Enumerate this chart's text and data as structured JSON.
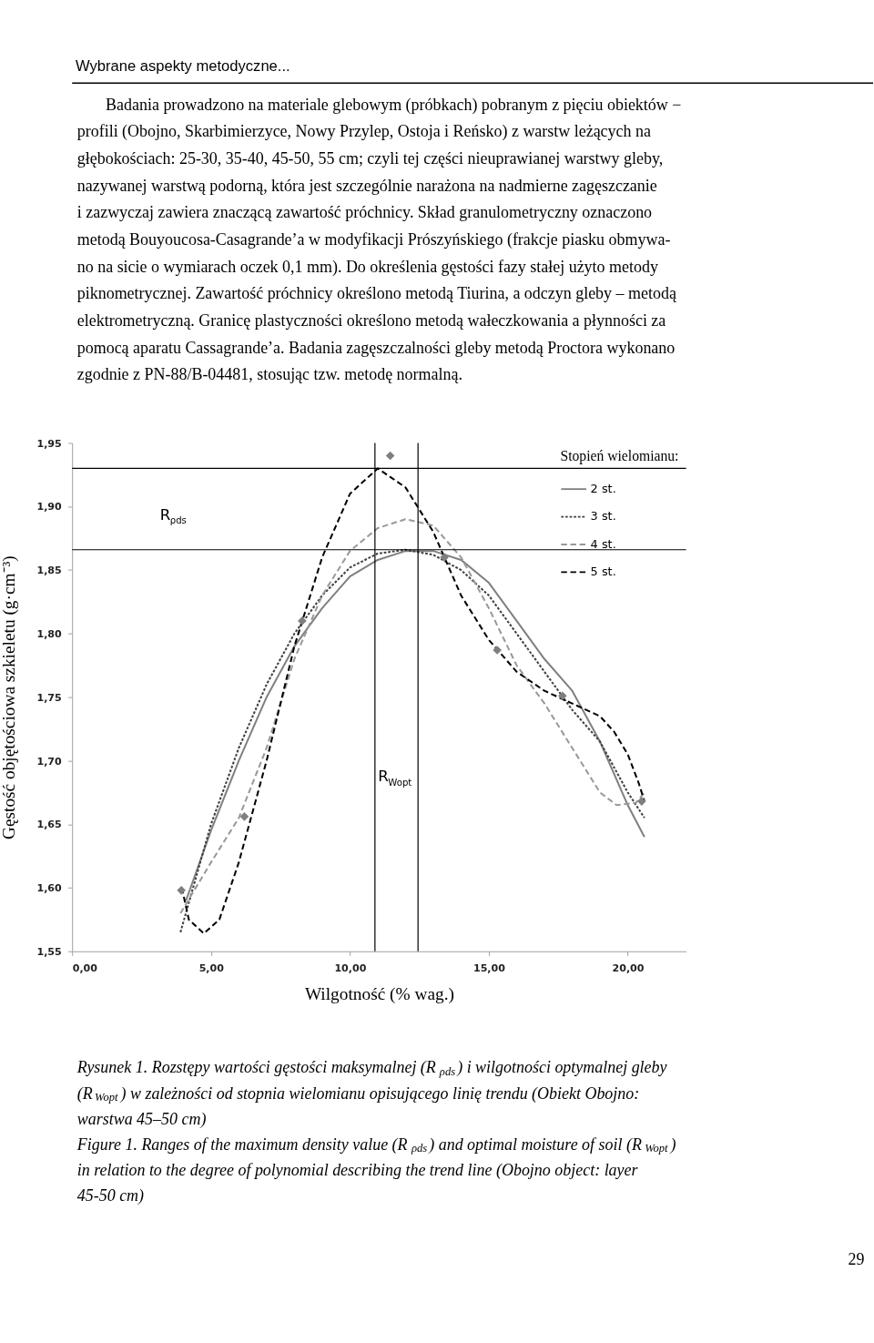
{
  "chart_data": {
    "type": "line",
    "title": "Wybrane aspekty metodyczne...",
    "xlabel": "Wilgotność (% wag.)",
    "ylabel": "Gęstość objętościowa szkieletu (g·cm⁻³)",
    "legend_title": "Stopień wielomianu:",
    "xlim": [
      0,
      22.1
    ],
    "xticks": [
      {
        "value": 0,
        "label": "0,00"
      },
      {
        "value": 5,
        "label": "5,00"
      },
      {
        "value": 10,
        "label": "10,00"
      },
      {
        "value": 15,
        "label": "15,00"
      },
      {
        "value": 20,
        "label": "20,00"
      }
    ],
    "ylim": [
      1.55,
      1.95
    ],
    "yticks": [
      {
        "value": 1.55,
        "label": "1,55"
      },
      {
        "value": 1.6,
        "label": "1,60"
      },
      {
        "value": 1.65,
        "label": "1,65"
      },
      {
        "value": 1.7,
        "label": "1,70"
      },
      {
        "value": 1.75,
        "label": "1,75"
      },
      {
        "value": 1.8,
        "label": "1,80"
      },
      {
        "value": 1.85,
        "label": "1,85"
      },
      {
        "value": 1.9,
        "label": "1,90"
      },
      {
        "value": 1.95,
        "label": "1,95"
      }
    ],
    "grid": false,
    "legend": "top right",
    "series": [
      {
        "name": "2 st.",
        "color": "#808080",
        "line_style": "solid",
        "x": [
          4.1,
          5,
          6,
          7,
          8,
          9,
          10,
          11,
          12,
          13,
          14,
          15,
          16,
          17,
          18,
          19,
          20,
          20.6
        ],
        "values": [
          1.59,
          1.645,
          1.7,
          1.75,
          1.79,
          1.82,
          1.845,
          1.858,
          1.865,
          1.865,
          1.858,
          1.84,
          1.81,
          1.78,
          1.755,
          1.715,
          1.665,
          1.64
        ]
      },
      {
        "name": "3 st.",
        "color": "#404040",
        "line_style": "dotted",
        "x": [
          3.9,
          5,
          6,
          7,
          8,
          9,
          10,
          11,
          12,
          13,
          14,
          15,
          16,
          17,
          18,
          19,
          20,
          20.6
        ],
        "values": [
          1.565,
          1.65,
          1.71,
          1.76,
          1.8,
          1.83,
          1.852,
          1.863,
          1.866,
          1.862,
          1.85,
          1.83,
          1.8,
          1.77,
          1.74,
          1.715,
          1.675,
          1.655
        ]
      },
      {
        "name": "4 st.",
        "color": "#999999",
        "line_style": "dashed",
        "x": [
          3.9,
          5,
          6,
          7,
          8,
          9,
          10,
          11,
          12,
          13,
          14,
          15,
          16,
          17,
          18,
          19,
          19.6,
          20.3,
          20.6
        ],
        "values": [
          1.58,
          1.62,
          1.655,
          1.71,
          1.78,
          1.83,
          1.865,
          1.883,
          1.89,
          1.885,
          1.86,
          1.82,
          1.775,
          1.745,
          1.71,
          1.675,
          1.665,
          1.667,
          1.675
        ]
      },
      {
        "name": "5 st.",
        "color": "#000000",
        "line_style": "dashed",
        "x": [
          3.95,
          4.2,
          4.74,
          5.3,
          6,
          7,
          8,
          9,
          10,
          11,
          12,
          13,
          14,
          15,
          16,
          17,
          18,
          19,
          19.5,
          20,
          20.4,
          20.6
        ],
        "values": [
          1.6,
          1.575,
          1.564,
          1.575,
          1.62,
          1.7,
          1.79,
          1.86,
          1.91,
          1.93,
          1.915,
          1.88,
          1.83,
          1.795,
          1.77,
          1.755,
          1.745,
          1.735,
          1.723,
          1.705,
          1.682,
          1.668
        ]
      },
      {
        "type": "scatter",
        "color": "#7f7f7f",
        "marker": "diamond",
        "x": [
          3.93,
          6.2,
          8.28,
          11.45,
          13.4,
          15.3,
          17.65,
          20.5
        ],
        "values": [
          1.598,
          1.656,
          1.81,
          1.94,
          1.86,
          1.787,
          1.751,
          1.668
        ]
      }
    ],
    "ref_lines": [
      {
        "axis": "y",
        "value": 1.93,
        "color": "#000000"
      },
      {
        "axis": "y",
        "value": 1.866,
        "color": "#000000"
      },
      {
        "axis": "x",
        "value": 10.9,
        "color": "#000000"
      },
      {
        "axis": "x",
        "value": 12.45,
        "color": "#000000"
      }
    ],
    "annotations": [
      "Badania prowadzono na materiale glebowym (próbkach) pobranym z pięciu obiektów −",
      "profili (Obojno, Skarbimierzyce, Nowy Przylep, Ostoja i Reńsko) z warstw leżących na",
      "głębokościach: 25-30, 35-40, 45-50, 55 cm; czyli tej części nieuprawianej warstwy gleby,",
      "nazywanej warstwą podorną, która jest szczególnie narażona na nadmierne zagęszczanie",
      "i zazwyczaj zawiera znaczącą zawartość próchnicy. Skład granulometryczny oznaczono",
      "metodą Bouyoucosa-Casagrande’a w modyfikacji Prószyńskiego (frakcje piasku obmywa-",
      "no na sicie o wymiarach oczek 0,1 mm). Do określenia gęstości fazy stałej użyto metody",
      "piknometrycznej. Zawartość próchnicy określono metodą Tiurina, a odczyn gleby – metodą",
      "elektrometryczną. Granicę plastyczności określono metodą wałeczkowania a płynności za",
      "pomocą aparatu Cassagrande’a. Badania zagęszczalności gleby metodą Proctora wykonano",
      "zgodnie z PN-88/B-04481, stosując tzw. metodę normalną.",
      "Rysunek 1. Rozstępy wartości gęstości maksymalnej (R$_{ρds}$) i wilgotności optymalnej gleby",
      "(R$_{Wopt}$) w zależności od stopnia wielomianu opisującego linię trendu (Obiekt Obojno:",
      "warstwa 45–50 cm)",
      "Figure 1. Ranges of the maximum density value (R$_{ρds}$) and optimal moisture of soil (R$_{Wopt}$)",
      "in relation to the degree of polynomial describing the trend line (Obojno object: layer",
      "45-50 cm)",
      "29",
      {
        "text": "R$_{ρds}$",
        "x": 3.1,
        "y": 1.866
      },
      {
        "text": "R$_{Wopt}$",
        "x": 10.95,
        "y": 1.66
      }
    ]
  }
}
